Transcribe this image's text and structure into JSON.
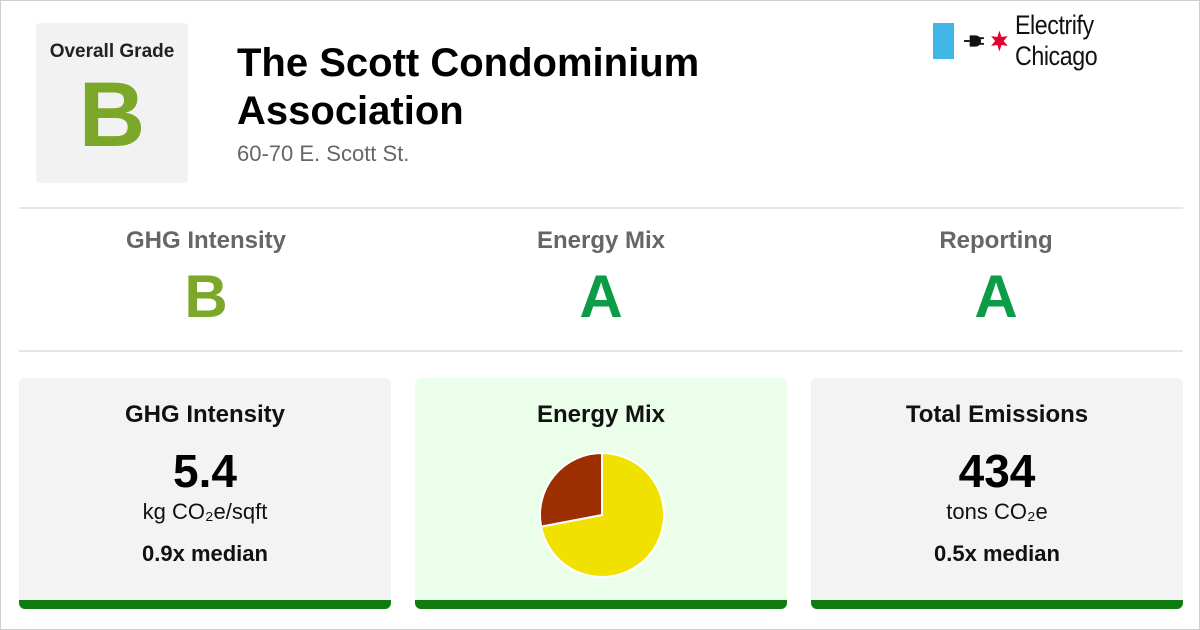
{
  "header": {
    "overall_grade_label": "Overall Grade",
    "overall_grade": "B",
    "title": "The Scott Condominium Association",
    "address": "60-70 E. Scott St."
  },
  "logo": {
    "text": "Electrify Chicago",
    "icons": [
      "chicago-flag-stripe",
      "plug-icon",
      "chicago-star-icon"
    ],
    "colors": {
      "flag": "#41b6e6",
      "star": "#e4002b"
    }
  },
  "subgrades": [
    {
      "label": "GHG Intensity",
      "grade": "B",
      "color": "#7ca829"
    },
    {
      "label": "Energy Mix",
      "grade": "A",
      "color": "#0c9b47"
    },
    {
      "label": "Reporting",
      "grade": "A",
      "color": "#0c9b47"
    }
  ],
  "cards": {
    "ghg": {
      "title": "GHG Intensity",
      "value": "5.4",
      "unit": "kg CO₂e/sqft",
      "median": "0.9x median"
    },
    "mix": {
      "title": "Energy Mix"
    },
    "emissions": {
      "title": "Total Emissions",
      "value": "434",
      "unit": "tons CO₂e",
      "median": "0.5x median"
    }
  },
  "chart_data": {
    "type": "pie",
    "title": "Energy Mix",
    "slices": [
      {
        "value": 72,
        "color": "#f0e100"
      },
      {
        "value": 28,
        "color": "#9c2e00"
      }
    ],
    "start": "top, clockwise"
  },
  "colors": {
    "grade_b": "#7ca829",
    "grade_a": "#0c9b47",
    "card_bar": "#107c10",
    "card_bg": "#f3f3f3",
    "mix_card_bg": "#eafeea"
  }
}
